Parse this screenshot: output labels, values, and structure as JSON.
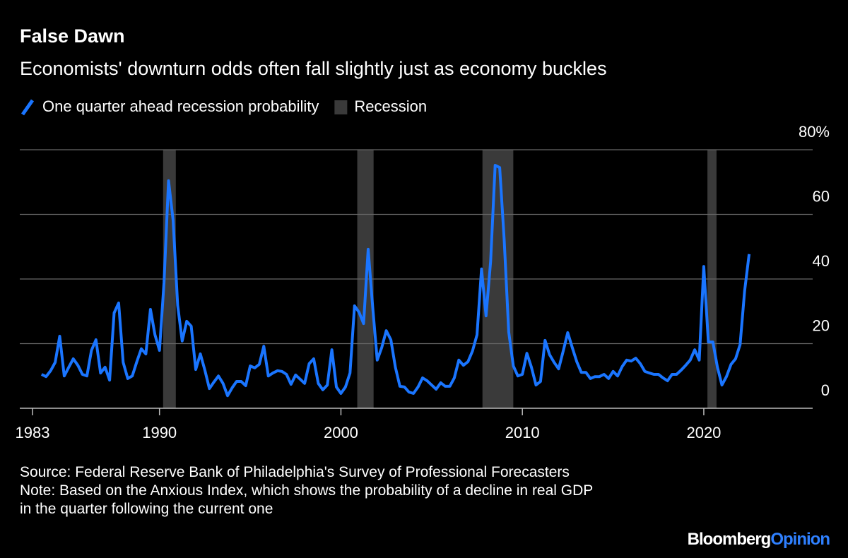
{
  "chart_data": {
    "type": "line",
    "title": "False Dawn",
    "subtitle": "Economists' downturn odds often fall slightly just as economy buckles",
    "source": "Source: Federal Reserve Bank of Philadelphia's Survey of Professional Forecasters",
    "note": "Note: Based on the Anxious Index, which shows the probability of a decline in real GDP in the quarter following the current one",
    "brand": [
      "Bloomberg",
      "Opinion"
    ],
    "legend": "top-left",
    "grid": true,
    "xlim": [
      1982.3,
      2026
    ],
    "ylim": [
      0,
      80
    ],
    "xticks": [
      1983,
      1990,
      2000,
      2010,
      2020
    ],
    "yticks": [
      0,
      20,
      40,
      60,
      {
        "value": 80,
        "label": "80%"
      }
    ],
    "recession_label": "Recession",
    "recession_color": "#3a3a3a",
    "recessions": [
      [
        1990.2,
        1990.9
      ],
      [
        2000.9,
        2001.8
      ],
      [
        2007.8,
        2009.5
      ],
      [
        2020.2,
        2020.7
      ]
    ],
    "x": [
      1983.5,
      1983.75,
      1984,
      1984.25,
      1984.5,
      1984.75,
      1985,
      1985.25,
      1985.5,
      1985.75,
      1986,
      1986.25,
      1986.5,
      1986.75,
      1987,
      1987.25,
      1987.5,
      1987.75,
      1988,
      1988.25,
      1988.5,
      1988.75,
      1989,
      1989.25,
      1989.5,
      1989.75,
      1990,
      1990.25,
      1990.5,
      1990.75,
      1991,
      1991.25,
      1991.5,
      1991.75,
      1992,
      1992.25,
      1992.5,
      1992.75,
      1993,
      1993.25,
      1993.5,
      1993.75,
      1994,
      1994.25,
      1994.5,
      1994.75,
      1995,
      1995.25,
      1995.5,
      1995.75,
      1996,
      1996.25,
      1996.5,
      1996.75,
      1997,
      1997.25,
      1997.5,
      1997.75,
      1998,
      1998.25,
      1998.5,
      1998.75,
      1999,
      1999.25,
      1999.5,
      1999.75,
      2000,
      2000.25,
      2000.5,
      2000.75,
      2001,
      2001.25,
      2001.5,
      2001.75,
      2002,
      2002.25,
      2002.5,
      2002.75,
      2003,
      2003.25,
      2003.5,
      2003.75,
      2004,
      2004.25,
      2004.5,
      2004.75,
      2005,
      2005.25,
      2005.5,
      2005.75,
      2006,
      2006.25,
      2006.5,
      2006.75,
      2007,
      2007.25,
      2007.5,
      2007.75,
      2008,
      2008.25,
      2008.5,
      2008.75,
      2009,
      2009.25,
      2009.5,
      2009.75,
      2010,
      2010.25,
      2010.5,
      2010.75,
      2011,
      2011.25,
      2011.5,
      2011.75,
      2012,
      2012.25,
      2012.5,
      2012.75,
      2013,
      2013.25,
      2013.5,
      2013.75,
      2014,
      2014.25,
      2014.5,
      2014.75,
      2015,
      2015.25,
      2015.5,
      2015.75,
      2016,
      2016.25,
      2016.5,
      2016.75,
      2017,
      2017.25,
      2017.5,
      2017.75,
      2018,
      2018.25,
      2018.5,
      2018.75,
      2019,
      2019.25,
      2019.5,
      2019.75,
      2020,
      2020.25,
      2020.5,
      2020.75,
      2021,
      2021.25,
      2021.5,
      2021.75,
      2022,
      2022.25,
      2022.5
    ],
    "series": [
      {
        "name": "One quarter ahead recession probability",
        "color": "#1a75ff",
        "values": [
          10.5,
          9.8,
          11.6,
          14.2,
          22.3,
          10,
          12.7,
          15.3,
          13.3,
          10.5,
          10,
          17.9,
          21.2,
          10.9,
          12.7,
          8.7,
          29.5,
          32.6,
          14.2,
          9.2,
          10,
          14.4,
          18.4,
          16.8,
          30.6,
          22.7,
          17.9,
          38.9,
          70.4,
          58.1,
          31.9,
          20.8,
          26.9,
          25.4,
          12,
          16.8,
          11.8,
          6.1,
          8.1,
          10,
          7.7,
          3.9,
          6.3,
          8.3,
          8.3,
          7,
          13.1,
          12.5,
          13.6,
          19.2,
          10,
          10.9,
          11.6,
          11.4,
          10.5,
          7.4,
          10.3,
          9,
          7.7,
          13.8,
          15.3,
          7.7,
          5.7,
          7.2,
          18.1,
          6.6,
          4.6,
          6.6,
          10.9,
          31.7,
          29.7,
          26.2,
          49.2,
          31.3,
          14.9,
          18.8,
          24,
          21.2,
          12.7,
          6.8,
          6.6,
          5,
          4.6,
          6.6,
          9.4,
          8.5,
          7.2,
          5.9,
          7.9,
          6.8,
          6.8,
          9.4,
          14.9,
          13.3,
          14.4,
          17.7,
          22.7,
          43.1,
          28.6,
          45.5,
          75.2,
          74.5,
          52,
          23.6,
          13.1,
          10,
          10.5,
          17,
          12.7,
          7.2,
          8.3,
          21,
          16.6,
          14.2,
          12.2,
          17.7,
          23.4,
          18.8,
          14.4,
          11.1,
          11.1,
          9.2,
          9.8,
          9.8,
          10.5,
          9.2,
          11.4,
          10,
          12.9,
          14.9,
          14.6,
          15.5,
          13.8,
          11.4,
          10.9,
          10.5,
          10.5,
          9.4,
          8.5,
          10.5,
          10.5,
          11.8,
          13.3,
          14.9,
          18.1,
          14.9,
          43.9,
          20.5,
          20.5,
          12.7,
          7.2,
          9.8,
          13.6,
          15.3,
          19.7,
          36.3,
          47.7
        ]
      }
    ]
  }
}
